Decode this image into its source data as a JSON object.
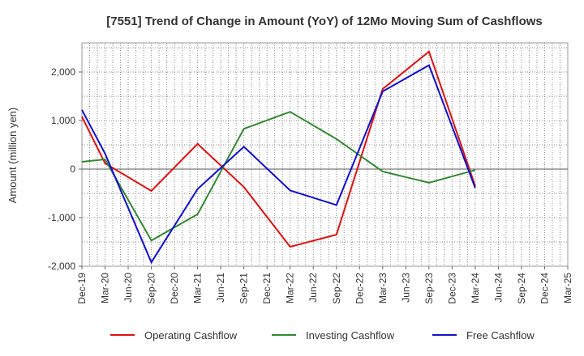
{
  "chart_data": {
    "type": "line",
    "title": "[7551]  Trend of Change in Amount (YoY) of 12Mo Moving Sum of Cashflows",
    "xlabel": "",
    "ylabel": "Amount (million yen)",
    "ylim": [
      -2000,
      2600
    ],
    "yticks": [
      -2000,
      -1000,
      0,
      1000,
      2000
    ],
    "ytick_labels": [
      "-2,000",
      "-1,000",
      "0",
      "1,000",
      "2,000"
    ],
    "categories": [
      "Dec-19",
      "Mar-20",
      "Jun-20",
      "Sep-20",
      "Dec-20",
      "Mar-21",
      "Jun-21",
      "Sep-21",
      "Dec-21",
      "Mar-22",
      "Jun-22",
      "Sep-22",
      "Dec-22",
      "Mar-23",
      "Jun-23",
      "Sep-23",
      "Dec-23",
      "Mar-24",
      "Jun-24",
      "Sep-24",
      "Dec-24",
      "Mar-25"
    ],
    "grid": true,
    "legend_position": "bottom",
    "series": [
      {
        "name": "Operating Cashflow",
        "color": "#dd1111",
        "values": [
          1080,
          120,
          null,
          -450,
          null,
          520,
          null,
          -370,
          null,
          -1600,
          null,
          -1350,
          null,
          1650,
          null,
          2420,
          null,
          -350,
          null,
          null,
          null,
          null
        ]
      },
      {
        "name": "Investing Cashflow",
        "color": "#338833",
        "values": [
          150,
          200,
          null,
          -1470,
          null,
          -930,
          null,
          830,
          null,
          1180,
          null,
          620,
          null,
          -50,
          null,
          -280,
          null,
          -20,
          null,
          null,
          null,
          null
        ]
      },
      {
        "name": "Free Cashflow",
        "color": "#1111cc",
        "values": [
          1220,
          320,
          null,
          -1920,
          null,
          -410,
          null,
          460,
          null,
          -440,
          null,
          -740,
          null,
          1600,
          null,
          2140,
          null,
          -390,
          null,
          null,
          null,
          null
        ]
      }
    ]
  }
}
